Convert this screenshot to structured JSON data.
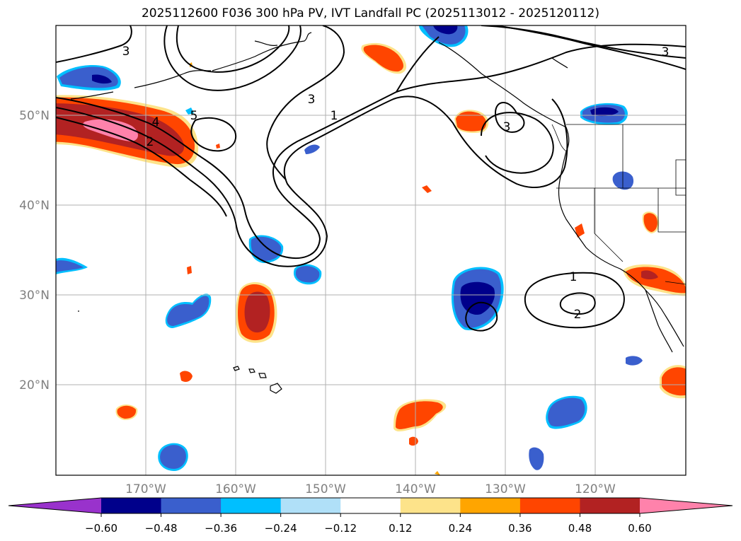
{
  "title": "2025112600 F036 300 hPa PV, IVT Landfall PC (2025113012 - 2025120112)",
  "map": {
    "region": "North Pacific / western North America",
    "lon_range": [
      -180,
      -110
    ],
    "lat_range": [
      10,
      60
    ],
    "lon_ticks": [
      {
        "value": -170,
        "label": "170°W"
      },
      {
        "value": -160,
        "label": "160°W"
      },
      {
        "value": -150,
        "label": "150°W"
      },
      {
        "value": -140,
        "label": "140°W"
      },
      {
        "value": -130,
        "label": "130°W"
      },
      {
        "value": -120,
        "label": "120°W"
      }
    ],
    "lat_ticks": [
      {
        "value": 20,
        "label": "20°N"
      },
      {
        "value": 30,
        "label": "30°N"
      },
      {
        "value": 40,
        "label": "40°N"
      },
      {
        "value": 50,
        "label": "50°N"
      }
    ],
    "contour_labels": [
      {
        "text": "3",
        "lon": -178,
        "lat": 57
      },
      {
        "text": "3",
        "lon": -154,
        "lat": 50
      },
      {
        "text": "1",
        "lon": -149,
        "lat": 48
      },
      {
        "text": "3",
        "lon": -130.5,
        "lat": 47
      },
      {
        "text": "3",
        "lon": -112,
        "lat": 57
      },
      {
        "text": "5",
        "lon": -164.5,
        "lat": 48.5
      },
      {
        "text": "4",
        "lon": -169,
        "lat": 47.5
      },
      {
        "text": "2",
        "lon": -170,
        "lat": 46
      },
      {
        "text": "1",
        "lon": -122,
        "lat": 32
      },
      {
        "text": "2",
        "lon": -122,
        "lat": 28
      }
    ]
  },
  "colorbar": {
    "ticks": [
      "−0.60",
      "−0.48",
      "−0.36",
      "−0.24",
      "−0.12",
      "0.12",
      "0.24",
      "0.36",
      "0.48",
      "0.60"
    ],
    "colors": [
      "#9932cc",
      "#00008b",
      "#3a5fcd",
      "#00bfff",
      "#b0e0f8",
      "#ffffff",
      "#fde38a",
      "#ffa500",
      "#ff4500",
      "#b22222",
      "#ff82ab"
    ]
  }
}
